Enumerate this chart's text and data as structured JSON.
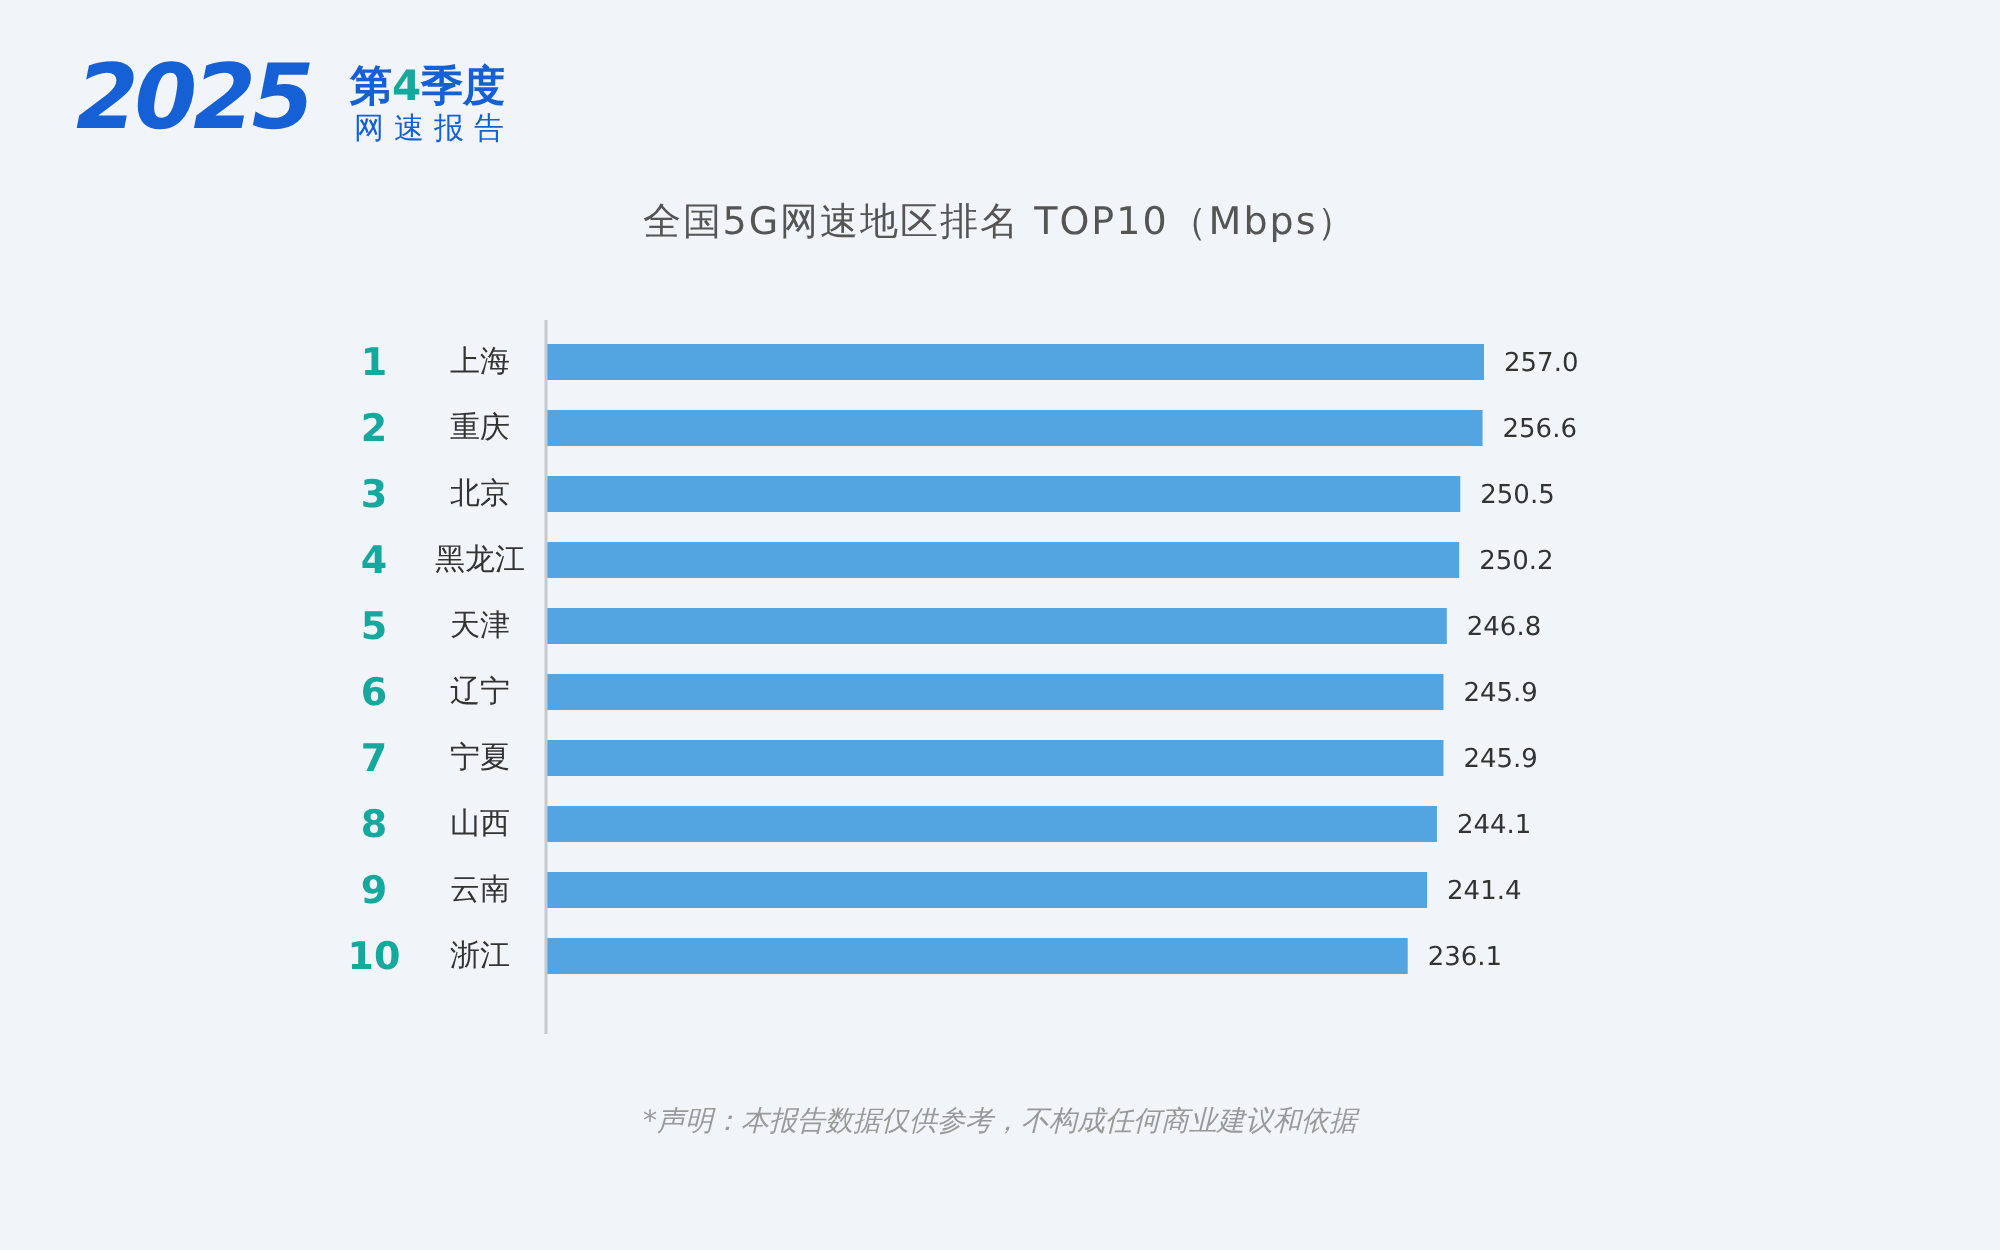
{
  "chart_data": {
    "type": "bar",
    "orientation": "horizontal",
    "title": "全国5G网速地区排名 TOP10（Mbps）",
    "categories": [
      "上海",
      "重庆",
      "北京",
      "黑龙江",
      "天津",
      "辽宁",
      "宁夏",
      "山西",
      "云南",
      "浙江"
    ],
    "values": [
      257.0,
      256.6,
      250.5,
      250.2,
      246.8,
      245.9,
      245.9,
      244.1,
      241.4,
      236.1
    ],
    "value_labels": [
      "257.0",
      "256.6",
      "250.5",
      "250.2",
      "246.8",
      "245.9",
      "245.9",
      "244.1",
      "241.4",
      "236.1"
    ],
    "color": "#52a5e0",
    "annotations": [
      "2025",
      "第4季度",
      "网速报告",
      "1",
      "2",
      "3",
      "4",
      "5",
      "6",
      "7",
      "8",
      "9",
      "10",
      "*声明：本报告数据仅供参考，不构成任何商业建议和依据"
    ]
  }
}
